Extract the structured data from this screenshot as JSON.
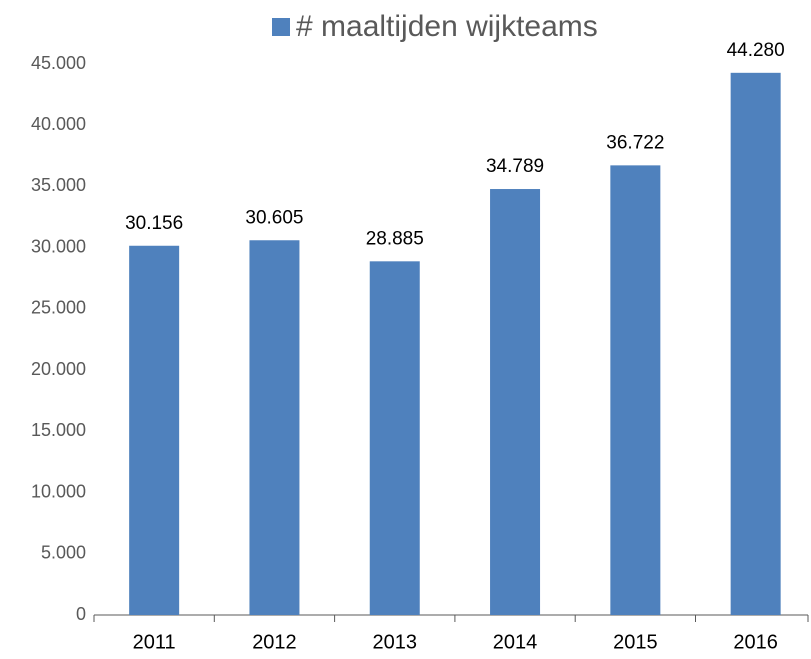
{
  "chart_data": {
    "type": "bar",
    "categories": [
      "2011",
      "2012",
      "2013",
      "2014",
      "2015",
      "2016"
    ],
    "series": [
      {
        "name": "# maaltijden wijkteams",
        "color": "#4f81bd",
        "values": [
          30156,
          30605,
          28885,
          34789,
          36722,
          44280
        ],
        "value_labels": [
          "30.156",
          "30.605",
          "28.885",
          "34.789",
          "36.722",
          "44.280"
        ]
      }
    ],
    "ylim": [
      0,
      45000
    ],
    "yticks": [
      0,
      {
        "value": 5000,
        "label": "5.000"
      },
      {
        "value": 10000,
        "label": "10.000"
      },
      {
        "value": 15000,
        "label": "15.000"
      },
      {
        "value": 20000,
        "label": "20.000"
      },
      {
        "value": 25000,
        "label": "25.000"
      },
      {
        "value": 30000,
        "label": "30.000"
      },
      {
        "value": 35000,
        "label": "35.000"
      },
      {
        "value": 40000,
        "label": "40.000"
      },
      {
        "value": 45000,
        "label": "45.000"
      }
    ],
    "grid": false,
    "legend": "top"
  }
}
